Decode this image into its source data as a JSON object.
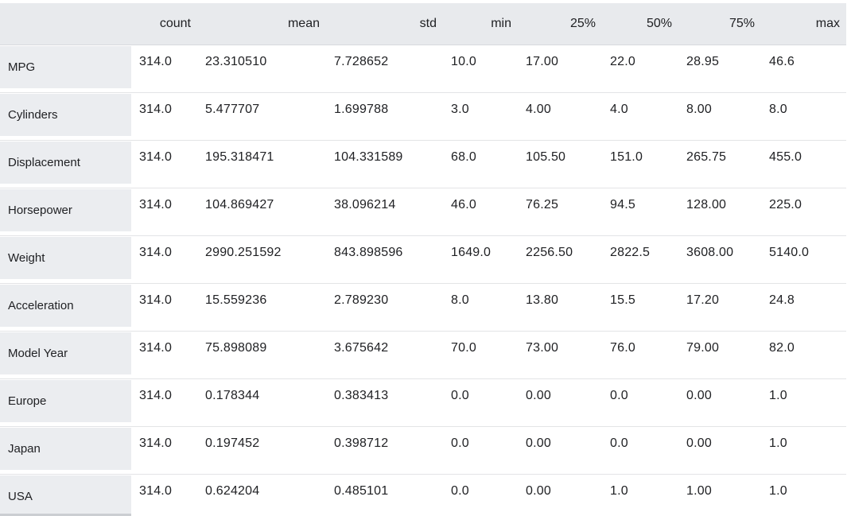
{
  "colors": {
    "header_bg": "#e8eaed",
    "row_label_bg": "#ebedf0",
    "divider": "#e3e4e6",
    "header_border": "#d8dadd",
    "text": "#202124",
    "scroll_thumb": "#cbced2"
  },
  "chart_data": {
    "type": "table",
    "columns": [
      "count",
      "mean",
      "std",
      "min",
      "25%",
      "50%",
      "75%",
      "max"
    ],
    "rows": [
      {
        "label": "MPG",
        "values": [
          "314.0",
          "23.310510",
          "7.728652",
          "10.0",
          "17.00",
          "22.0",
          "28.95",
          "46.6"
        ]
      },
      {
        "label": "Cylinders",
        "values": [
          "314.0",
          "5.477707",
          "1.699788",
          "3.0",
          "4.00",
          "4.0",
          "8.00",
          "8.0"
        ]
      },
      {
        "label": "Displacement",
        "values": [
          "314.0",
          "195.318471",
          "104.331589",
          "68.0",
          "105.50",
          "151.0",
          "265.75",
          "455.0"
        ]
      },
      {
        "label": "Horsepower",
        "values": [
          "314.0",
          "104.869427",
          "38.096214",
          "46.0",
          "76.25",
          "94.5",
          "128.00",
          "225.0"
        ]
      },
      {
        "label": "Weight",
        "values": [
          "314.0",
          "2990.251592",
          "843.898596",
          "1649.0",
          "2256.50",
          "2822.5",
          "3608.00",
          "5140.0"
        ]
      },
      {
        "label": "Acceleration",
        "values": [
          "314.0",
          "15.559236",
          "2.789230",
          "8.0",
          "13.80",
          "15.5",
          "17.20",
          "24.8"
        ]
      },
      {
        "label": "Model Year",
        "values": [
          "314.0",
          "75.898089",
          "3.675642",
          "70.0",
          "73.00",
          "76.0",
          "79.00",
          "82.0"
        ]
      },
      {
        "label": "Europe",
        "values": [
          "314.0",
          "0.178344",
          "0.383413",
          "0.0",
          "0.00",
          "0.0",
          "0.00",
          "1.0"
        ]
      },
      {
        "label": "Japan",
        "values": [
          "314.0",
          "0.197452",
          "0.398712",
          "0.0",
          "0.00",
          "0.0",
          "0.00",
          "1.0"
        ]
      },
      {
        "label": "USA",
        "values": [
          "314.0",
          "0.624204",
          "0.485101",
          "0.0",
          "0.00",
          "1.0",
          "1.00",
          "1.0"
        ]
      }
    ]
  }
}
